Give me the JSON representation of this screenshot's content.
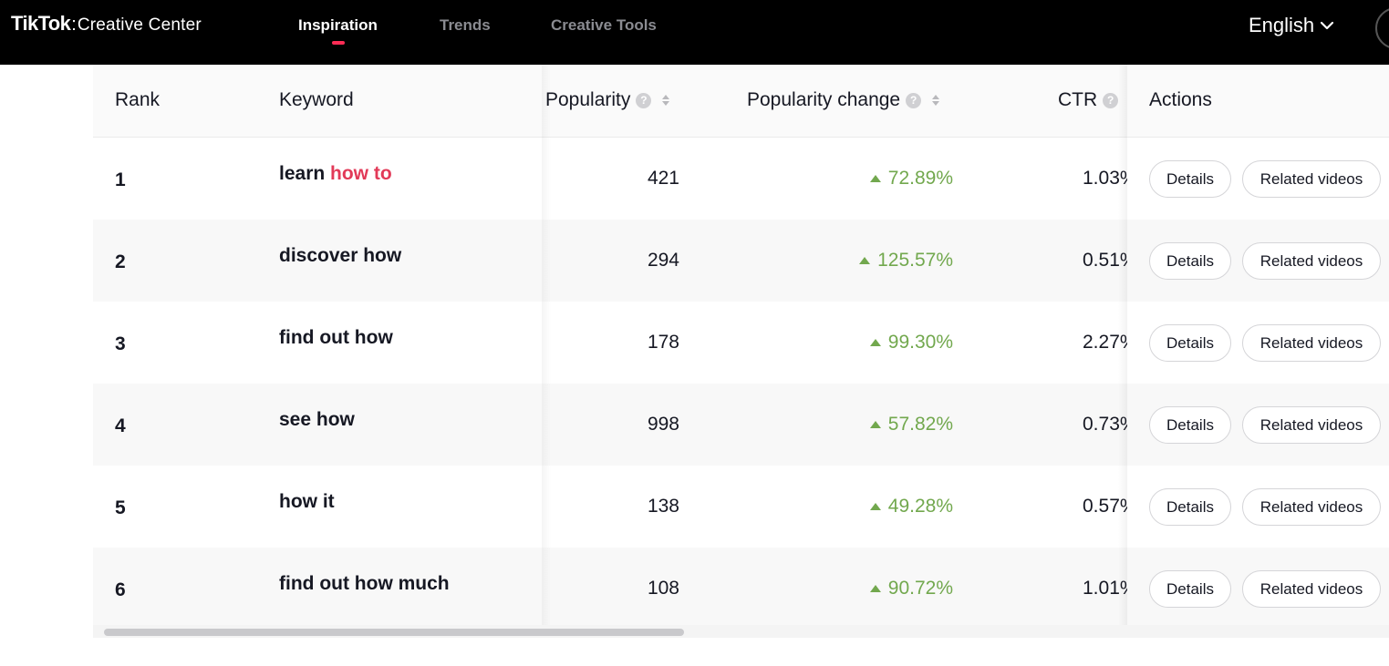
{
  "app": {
    "brand": "TikTok",
    "separator": ":",
    "product": "Creative Center"
  },
  "nav": {
    "items": [
      {
        "label": "Inspiration",
        "active": true
      },
      {
        "label": "Trends",
        "active": false
      },
      {
        "label": "Creative Tools",
        "active": false
      }
    ],
    "language": "English",
    "accent_color": "#fe2c55"
  },
  "table": {
    "columns": {
      "rank": "Rank",
      "keyword": "Keyword",
      "popularity": "Popularity",
      "popularity_change": "Popularity change",
      "ctr": "CTR",
      "actions": "Actions"
    },
    "rows": [
      {
        "rank": "1",
        "keyword_prefix": "learn ",
        "keyword_highlight": "how to",
        "popularity": "421",
        "change": "72.89%",
        "ctr": "1.03%"
      },
      {
        "rank": "2",
        "keyword_prefix": "discover how",
        "keyword_highlight": "",
        "popularity": "294",
        "change": "125.57%",
        "ctr": "0.51%"
      },
      {
        "rank": "3",
        "keyword_prefix": "find out how",
        "keyword_highlight": "",
        "popularity": "178",
        "change": "99.30%",
        "ctr": "2.27%"
      },
      {
        "rank": "4",
        "keyword_prefix": "see how",
        "keyword_highlight": "",
        "popularity": "998",
        "change": "57.82%",
        "ctr": "0.73%"
      },
      {
        "rank": "5",
        "keyword_prefix": "how it",
        "keyword_highlight": "",
        "popularity": "138",
        "change": "49.28%",
        "ctr": "0.57%"
      },
      {
        "rank": "6",
        "keyword_prefix": "find out how much",
        "keyword_highlight": "",
        "popularity": "108",
        "change": "90.72%",
        "ctr": "1.01%"
      }
    ],
    "details_label": "Details",
    "related_label": "Related videos",
    "positive_color": "#72a84e",
    "highlight_color": "#e23a58"
  }
}
